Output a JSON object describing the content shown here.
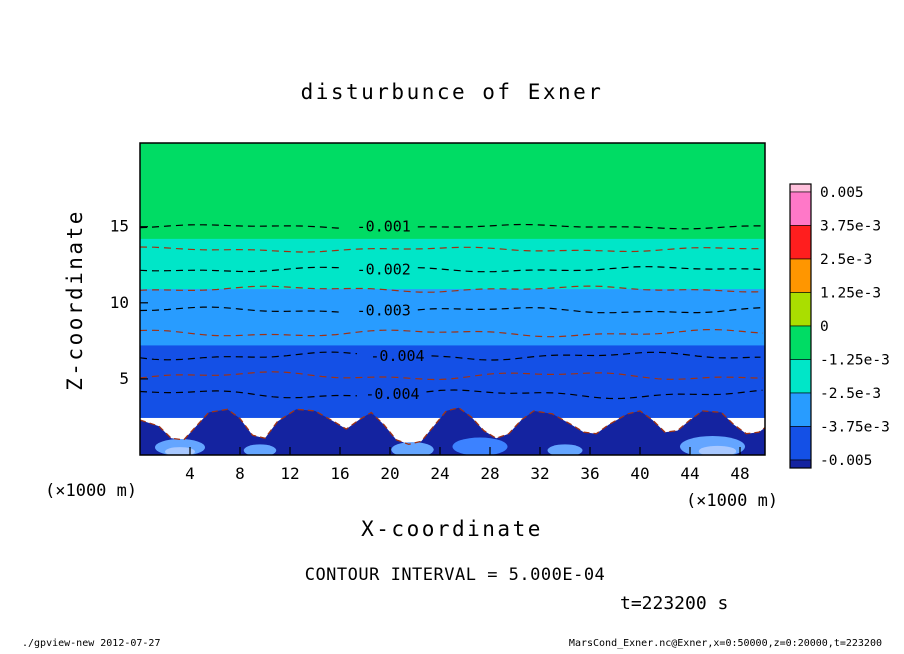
{
  "page": {
    "title": "disturbunce of Exner",
    "contour_interval_text": "CONTOUR INTERVAL = 5.000E-04",
    "time_text": "t=223200 s",
    "footer_left": "./gpview-new  2012-07-27",
    "footer_right": "MarsCond_Exner.nc@Exner,x=0:50000,z=0:20000,t=223200"
  },
  "axes": {
    "x_label": "X-coordinate",
    "x_units": "(×1000 m)",
    "y_label": "Z-coordinate",
    "y_units": "(×1000 m)"
  },
  "chart_data": {
    "type": "filled-contour",
    "title": "disturbunce of Exner",
    "xlabel": "X-coordinate (×1000 m)",
    "ylabel": "Z-coordinate (×1000 m)",
    "xlim": [
      0,
      50
    ],
    "ylim": [
      0,
      20.5
    ],
    "x_ticks": [
      4,
      8,
      12,
      16,
      20,
      24,
      28,
      32,
      36,
      40,
      44,
      48
    ],
    "y_ticks": [
      5,
      10,
      15
    ],
    "contour_interval": 0.0005,
    "time_seconds": 223200,
    "fill_bands": [
      {
        "value_min": -0.00125,
        "value_max": 0,
        "z_top": 20.5,
        "z_bottom": 14.2,
        "color": "#00dc64"
      },
      {
        "value_min": -0.0025,
        "value_max": -0.00125,
        "z_top": 14.2,
        "z_bottom": 10.9,
        "color": "#00e6c8"
      },
      {
        "value_min": -0.00375,
        "value_max": -0.0025,
        "z_top": 10.9,
        "z_bottom": 7.2,
        "color": "#289cff"
      },
      {
        "value_min": -0.005,
        "value_max": -0.00375,
        "z_top": 7.2,
        "z_bottom": 2.5,
        "color": "#1450e6"
      }
    ],
    "below_range_band": {
      "value_below": -0.005,
      "color": "#1423a0",
      "line_color": "#a03214",
      "boundary": [
        [
          0,
          2.3
        ],
        [
          1.5,
          1.9
        ],
        [
          2.5,
          1.1
        ],
        [
          3.5,
          1.0
        ],
        [
          4.5,
          1.9
        ],
        [
          5.5,
          2.8
        ],
        [
          7,
          3.0
        ],
        [
          8,
          2.4
        ],
        [
          9,
          1.3
        ],
        [
          10,
          1.1
        ],
        [
          11,
          2.2
        ],
        [
          12.5,
          3.0
        ],
        [
          14,
          2.9
        ],
        [
          15.5,
          2.2
        ],
        [
          16.5,
          1.7
        ],
        [
          17.5,
          2.3
        ],
        [
          18.5,
          2.8
        ],
        [
          19.5,
          2.0
        ],
        [
          20.5,
          1.0
        ],
        [
          21.5,
          0.7
        ],
        [
          22.5,
          0.9
        ],
        [
          23.5,
          1.9
        ],
        [
          24.5,
          2.9
        ],
        [
          25.5,
          3.1
        ],
        [
          26.5,
          2.5
        ],
        [
          27.5,
          1.6
        ],
        [
          28.5,
          1.1
        ],
        [
          29.5,
          1.4
        ],
        [
          30.5,
          2.3
        ],
        [
          31.5,
          2.9
        ],
        [
          33,
          2.7
        ],
        [
          34.5,
          2.0
        ],
        [
          35.5,
          1.5
        ],
        [
          36.5,
          1.4
        ],
        [
          37.5,
          2.0
        ],
        [
          39,
          2.7
        ],
        [
          40,
          2.9
        ],
        [
          41,
          2.3
        ],
        [
          42,
          1.5
        ],
        [
          43,
          1.6
        ],
        [
          44,
          2.3
        ],
        [
          45,
          2.9
        ],
        [
          46.5,
          2.8
        ],
        [
          47.5,
          2.0
        ],
        [
          48.5,
          1.4
        ],
        [
          49.5,
          1.5
        ],
        [
          50,
          1.8
        ]
      ]
    },
    "bottom_patches": [
      {
        "x": 3.2,
        "z": 0.5,
        "rx": 2.0,
        "rz": 0.55,
        "color": "#64a5ff"
      },
      {
        "x": 3.2,
        "z": 0.22,
        "rx": 1.2,
        "rz": 0.3,
        "color": "#a8c8ff"
      },
      {
        "x": 9.6,
        "z": 0.3,
        "rx": 1.3,
        "rz": 0.4,
        "color": "#64a5ff"
      },
      {
        "x": 21.8,
        "z": 0.35,
        "rx": 1.7,
        "rz": 0.5,
        "color": "#64a5ff"
      },
      {
        "x": 27.2,
        "z": 0.55,
        "rx": 2.2,
        "rz": 0.6,
        "color": "#3c82ff"
      },
      {
        "x": 34.0,
        "z": 0.3,
        "rx": 1.4,
        "rz": 0.4,
        "color": "#64a5ff"
      },
      {
        "x": 45.8,
        "z": 0.55,
        "rx": 2.6,
        "rz": 0.7,
        "color": "#64a5ff"
      },
      {
        "x": 46.2,
        "z": 0.25,
        "rx": 1.5,
        "rz": 0.35,
        "color": "#a8c8ff"
      }
    ],
    "contour_lines": [
      {
        "level": -0.001,
        "z": 15.0,
        "label": "-0.001",
        "label_x": 19.5,
        "color": "#000000"
      },
      {
        "level": -0.0015,
        "z": 13.5,
        "label": "",
        "color": "#a03214"
      },
      {
        "level": -0.002,
        "z": 12.2,
        "label": "-0.002",
        "label_x": 19.5,
        "color": "#000000"
      },
      {
        "level": -0.0025,
        "z": 10.9,
        "label": "",
        "color": "#a03214"
      },
      {
        "level": -0.003,
        "z": 9.5,
        "label": "-0.003",
        "label_x": 19.5,
        "color": "#000000"
      },
      {
        "level": -0.0035,
        "z": 8.0,
        "label": "",
        "color": "#a03214"
      },
      {
        "level": -0.004,
        "z": 6.5,
        "label": "-0.004",
        "label_x": 20.6,
        "color": "#000000"
      },
      {
        "level": -0.0045,
        "z": 5.2,
        "label": "",
        "color": "#a03214"
      },
      {
        "level": -0.004,
        "z": 4.0,
        "label": "-0.004",
        "label_x": 20.2,
        "color": "#000000"
      }
    ],
    "colorbar": {
      "tick_labels": [
        "0.005",
        "3.75e-3",
        "2.5e-3",
        "1.25e-3",
        "0",
        "-1.25e-3",
        "-2.5e-3",
        "-3.75e-3",
        "-0.005"
      ],
      "segment_colors": [
        "#ff78c8",
        "#ff1e1e",
        "#ff9600",
        "#aade00",
        "#00dc64",
        "#00e6c8",
        "#289cff",
        "#1450e6"
      ],
      "over_color": "#ffc0dc",
      "under_color": "#1423a0"
    }
  }
}
